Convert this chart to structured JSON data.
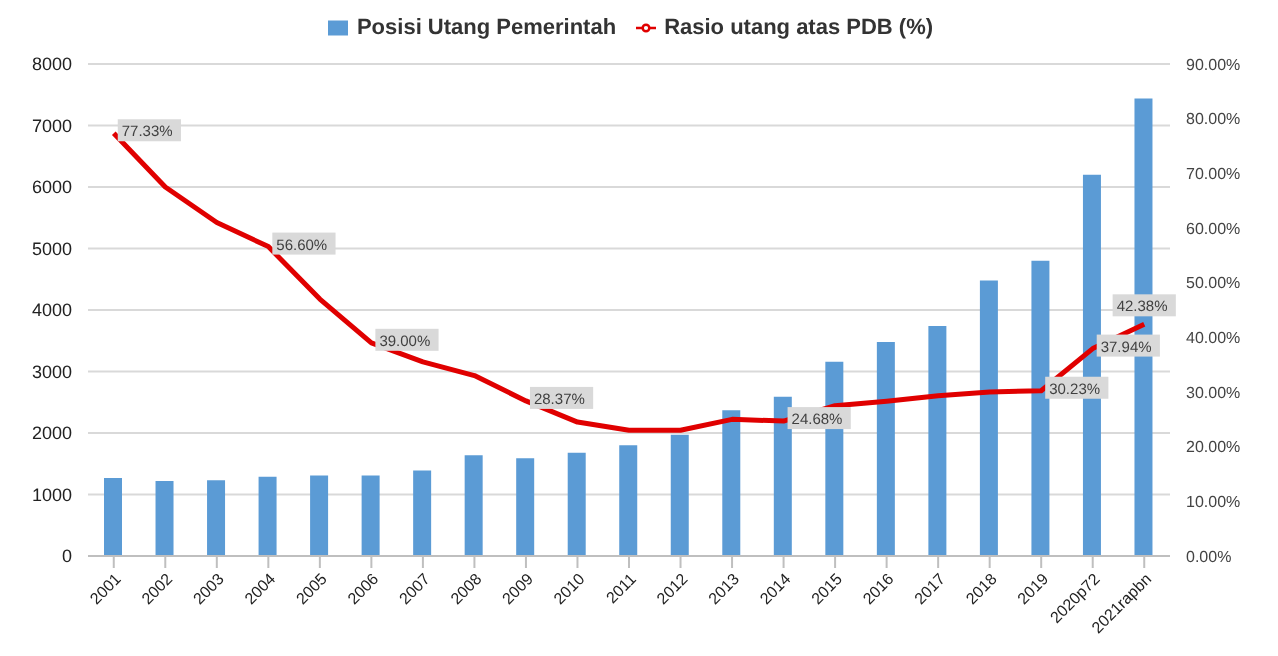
{
  "chart_data": {
    "type": "bar",
    "categories": [
      "2001",
      "2002",
      "2003",
      "2004",
      "2005",
      "2006",
      "2007",
      "2008",
      "2009",
      "2010",
      "2011",
      "2012",
      "2013",
      "2014",
      "2015",
      "2016",
      "2017",
      "2018",
      "2019",
      "2020p72",
      "2021rapbn"
    ],
    "series": [
      {
        "name": "Posisi Utang Pemerintah",
        "color": "#5b9bd5",
        "values": [
          1270,
          1220,
          1230,
          1290,
          1310,
          1310,
          1390,
          1640,
          1590,
          1680,
          1800,
          1970,
          2370,
          2590,
          3160,
          3480,
          3740,
          4480,
          4800,
          6200,
          7440
        ]
      },
      {
        "name": "Rasio utang atas PDB (%)",
        "type": "line",
        "axis": "y2",
        "color": "#e00000",
        "values": [
          77.33,
          67.5,
          61,
          56.6,
          47,
          39.0,
          35.5,
          33,
          28.37,
          24.5,
          23,
          23,
          25,
          24.68,
          27.5,
          28.3,
          29.3,
          30,
          30.23,
          37.94,
          42.38
        ],
        "value_labels": [
          "77.33%",
          null,
          null,
          "56.60%",
          null,
          "39.00%",
          null,
          null,
          "28.37%",
          null,
          null,
          null,
          null,
          "24.68%",
          null,
          null,
          null,
          null,
          "30.23%",
          "37.94%",
          "42.38%"
        ]
      }
    ],
    "ylim": [
      0,
      8000
    ],
    "yticks": [
      0,
      1000,
      2000,
      3000,
      4000,
      5000,
      6000,
      7000,
      8000
    ],
    "y2lim": [
      0,
      90
    ],
    "y2ticks": [
      {
        "value": 0,
        "label": "0.00%"
      },
      {
        "value": 10,
        "label": "10.00%"
      },
      {
        "value": 20,
        "label": "20.00%"
      },
      {
        "value": 30,
        "label": "30.00%"
      },
      {
        "value": 40,
        "label": "40.00%"
      },
      {
        "value": 50,
        "label": "50.00%"
      },
      {
        "value": 60,
        "label": "60.00%"
      },
      {
        "value": 70,
        "label": "70.00%"
      },
      {
        "value": 80,
        "label": "80.00%"
      },
      {
        "value": 90,
        "label": "90.00%"
      }
    ],
    "grid": "y",
    "legend": "top",
    "marker": "none",
    "line_style": "solid"
  }
}
